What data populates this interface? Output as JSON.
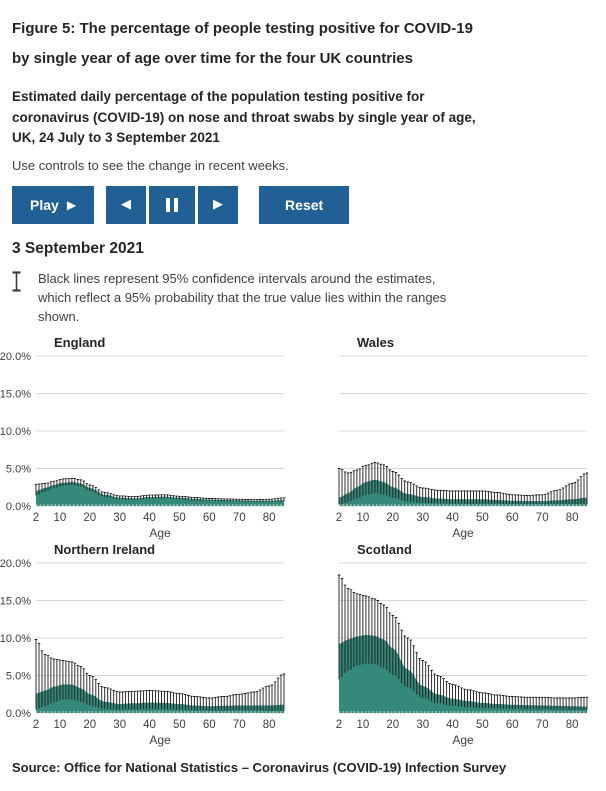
{
  "header": {
    "title_lines": [
      "Figure 5: The percentage of people testing positive for COVID-19",
      "by single year of age over time for the four UK countries"
    ],
    "subtitle_lines": [
      "Estimated daily percentage of the population testing positive for",
      "coronavirus (COVID-19) on nose and throat swabs by single year of age,",
      "UK, 24 July to 3 September 2021"
    ],
    "controls_hint": "Use controls to see the change in recent weeks."
  },
  "controls": {
    "play_label": "Play",
    "reset_label": "Reset",
    "icons": {
      "play": "▶",
      "step_back": "◀",
      "pause": "pause-bars",
      "step_forward": "▶"
    }
  },
  "current_date": "3 September 2021",
  "ci_note_lines": [
    "Black lines represent 95% confidence intervals around the estimates,",
    "which reflect a 95% probability that the true value lies within the ranges",
    "shown."
  ],
  "source": "Source: Office for National Statistics – Coronavirus (COVID-19) Infection Survey",
  "colors": {
    "accent_blue": "#206095",
    "area_teal": "#35897b",
    "ci_black": "#1a1a1a",
    "gridline": "#d9d9d9",
    "text_dark": "#252525",
    "text_body": "#414042"
  },
  "chart_data": [
    {
      "type": "area",
      "title": "England",
      "xlabel": "Age",
      "xlim": [
        2,
        85
      ],
      "ylim": [
        0,
        20
      ],
      "x_ticks": [
        2,
        10,
        20,
        30,
        40,
        50,
        60,
        70,
        80
      ],
      "y_tick_labels": [
        "0.0%",
        "5.0%",
        "10.0%",
        "15.0%",
        "20.0%"
      ],
      "show_y_labels": true,
      "unit": "%",
      "ages": [
        2,
        5,
        8,
        11,
        14,
        17,
        20,
        25,
        30,
        35,
        40,
        45,
        50,
        55,
        60,
        65,
        70,
        75,
        80,
        85
      ],
      "estimate": [
        2.0,
        2.4,
        2.8,
        3.1,
        3.2,
        3.0,
        2.4,
        1.5,
        1.1,
        1.0,
        1.2,
        1.25,
        1.1,
        0.95,
        0.85,
        0.8,
        0.75,
        0.7,
        0.7,
        0.8
      ],
      "ci_upper": [
        2.9,
        3.0,
        3.3,
        3.6,
        3.7,
        3.5,
        2.8,
        1.8,
        1.35,
        1.25,
        1.45,
        1.5,
        1.3,
        1.15,
        1.0,
        0.95,
        0.9,
        0.85,
        0.9,
        1.1
      ],
      "ci_lower": [
        1.4,
        1.9,
        2.4,
        2.7,
        2.8,
        2.6,
        2.0,
        1.2,
        0.9,
        0.8,
        1.0,
        1.05,
        0.9,
        0.75,
        0.7,
        0.65,
        0.6,
        0.55,
        0.55,
        0.6
      ]
    },
    {
      "type": "area",
      "title": "Wales",
      "xlabel": "Age",
      "xlim": [
        2,
        85
      ],
      "ylim": [
        0,
        20
      ],
      "x_ticks": [
        2,
        10,
        20,
        30,
        40,
        50,
        60,
        70,
        80
      ],
      "y_tick_labels": [
        "0.0%",
        "5.0%",
        "10.0%",
        "15.0%",
        "20.0%"
      ],
      "show_y_labels": false,
      "unit": "%",
      "ages": [
        2,
        5,
        8,
        11,
        14,
        17,
        20,
        25,
        30,
        35,
        40,
        45,
        50,
        55,
        60,
        65,
        70,
        75,
        80,
        85
      ],
      "estimate": [
        1.1,
        1.7,
        2.5,
        3.2,
        3.5,
        3.2,
        2.5,
        1.6,
        1.2,
        1.0,
        0.9,
        0.9,
        0.9,
        0.8,
        0.7,
        0.65,
        0.65,
        0.75,
        0.9,
        1.1
      ],
      "ci_upper": [
        5.0,
        4.4,
        4.8,
        5.4,
        5.8,
        5.5,
        4.6,
        3.2,
        2.4,
        2.1,
        2.0,
        2.0,
        2.0,
        1.8,
        1.5,
        1.4,
        1.5,
        2.1,
        3.0,
        4.4
      ],
      "ci_lower": [
        0.2,
        0.5,
        1.0,
        1.5,
        1.7,
        1.5,
        1.1,
        0.6,
        0.4,
        0.35,
        0.3,
        0.3,
        0.3,
        0.28,
        0.25,
        0.25,
        0.25,
        0.25,
        0.25,
        0.25
      ]
    },
    {
      "type": "area",
      "title": "Northern Ireland",
      "xlabel": "Age",
      "xlim": [
        2,
        85
      ],
      "ylim": [
        0,
        20
      ],
      "x_ticks": [
        2,
        10,
        20,
        30,
        40,
        50,
        60,
        70,
        80
      ],
      "y_tick_labels": [
        "0.0%",
        "5.0%",
        "10.0%",
        "15.0%",
        "20.0%"
      ],
      "show_y_labels": true,
      "unit": "%",
      "ages": [
        2,
        5,
        8,
        11,
        14,
        17,
        20,
        25,
        30,
        35,
        40,
        45,
        50,
        55,
        60,
        65,
        70,
        75,
        80,
        85
      ],
      "estimate": [
        2.6,
        3.0,
        3.5,
        3.8,
        3.8,
        3.3,
        2.5,
        1.5,
        1.2,
        1.3,
        1.4,
        1.35,
        1.2,
        1.0,
        0.9,
        0.95,
        1.0,
        1.0,
        1.0,
        1.1
      ],
      "ci_upper": [
        9.8,
        7.8,
        7.2,
        7.0,
        6.8,
        6.2,
        5.0,
        3.4,
        2.8,
        2.9,
        3.0,
        2.9,
        2.6,
        2.2,
        2.0,
        2.2,
        2.5,
        2.8,
        3.6,
        5.2
      ],
      "ci_lower": [
        0.5,
        0.9,
        1.4,
        1.8,
        1.8,
        1.5,
        1.0,
        0.55,
        0.45,
        0.5,
        0.55,
        0.5,
        0.45,
        0.38,
        0.33,
        0.35,
        0.37,
        0.35,
        0.3,
        0.28
      ]
    },
    {
      "type": "area",
      "title": "Scotland",
      "xlabel": "Age",
      "xlim": [
        2,
        85
      ],
      "ylim": [
        0,
        20
      ],
      "x_ticks": [
        2,
        10,
        20,
        30,
        40,
        50,
        60,
        70,
        80
      ],
      "y_tick_labels": [
        "0.0%",
        "5.0%",
        "10.0%",
        "15.0%",
        "20.0%"
      ],
      "show_y_labels": false,
      "unit": "%",
      "ages": [
        2,
        5,
        8,
        11,
        14,
        17,
        20,
        25,
        30,
        35,
        40,
        45,
        50,
        55,
        60,
        65,
        70,
        75,
        80,
        85
      ],
      "estimate": [
        9.2,
        9.8,
        10.2,
        10.4,
        10.3,
        9.8,
        8.6,
        5.8,
        3.6,
        2.5,
        1.9,
        1.6,
        1.35,
        1.2,
        1.1,
        1.05,
        1.0,
        0.95,
        0.9,
        0.85
      ],
      "ci_upper": [
        18.4,
        16.6,
        15.9,
        15.6,
        15.2,
        14.4,
        13.0,
        10.0,
        7.0,
        5.0,
        3.8,
        3.1,
        2.7,
        2.4,
        2.2,
        2.1,
        2.1,
        2.0,
        2.0,
        2.1
      ],
      "ci_lower": [
        4.5,
        5.6,
        6.3,
        6.6,
        6.5,
        6.0,
        5.1,
        3.4,
        2.0,
        1.3,
        0.95,
        0.75,
        0.65,
        0.6,
        0.55,
        0.5,
        0.48,
        0.45,
        0.42,
        0.4
      ]
    }
  ]
}
